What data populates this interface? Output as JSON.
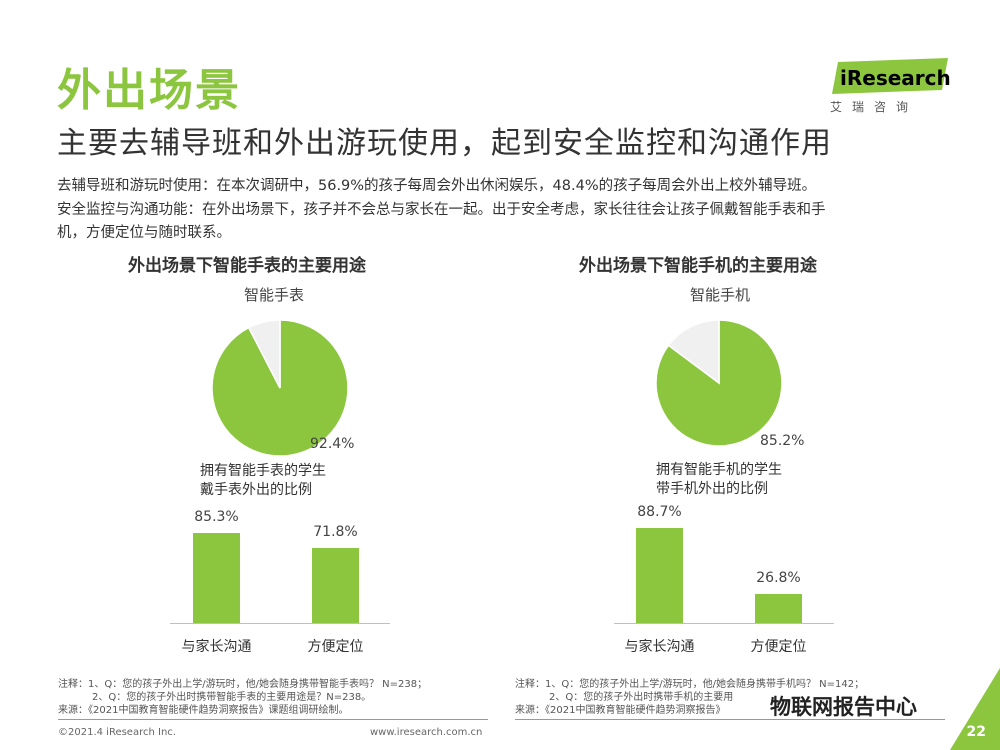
{
  "header": {
    "title": "外出场景",
    "subtitle": "主要去辅导班和外出游玩使用，起到安全监控和沟通作用",
    "logo_text": "iResearch",
    "logo_cn": "艾瑞咨询"
  },
  "description": {
    "line1": "去辅导班和游玩时使用：在本次调研中，56.9%的孩子每周会外出休闲娱乐，48.4%的孩子每周会外出上校外辅导班。",
    "line2": "安全监控与沟通功能：在外出场景下，孩子并不会总与家长在一起。出于安全考虑，家长往往会让孩子佩戴智能手表和手",
    "line3": "机，方便定位与随时联系。"
  },
  "chart_data": [
    {
      "type": "pie",
      "title": "外出场景下智能手表的主要用途",
      "subtitle": "智能手表",
      "values": [
        92.4,
        7.6
      ],
      "value_label": "92.4%",
      "caption_line1": "拥有智能手表的学生",
      "caption_line2": "戴手表外出的比例",
      "colors": [
        "#8cc63f",
        "#f0f0f0"
      ]
    },
    {
      "type": "bar",
      "categories": [
        "与家长沟通",
        "方便定位"
      ],
      "values": [
        85.3,
        71.8
      ],
      "value_labels": [
        "85.3%",
        "71.8%"
      ],
      "ylim": [
        0,
        100
      ],
      "color": "#8cc63f"
    },
    {
      "type": "pie",
      "title": "外出场景下智能手机的主要用途",
      "subtitle": "智能手机",
      "values": [
        85.2,
        14.8
      ],
      "value_label": "85.2%",
      "caption_line1": "拥有智能手机的学生",
      "caption_line2": "带手机外出的比例",
      "colors": [
        "#8cc63f",
        "#f0f0f0"
      ]
    },
    {
      "type": "bar",
      "categories": [
        "与家长沟通",
        "方便定位"
      ],
      "values": [
        88.7,
        26.8
      ],
      "value_labels": [
        "88.7%",
        "26.8%"
      ],
      "ylim": [
        0,
        100
      ],
      "color": "#8cc63f"
    }
  ],
  "notes_left": {
    "line1": "注释：1、Q：您的孩子外出上学/游玩时，他/她会随身携带智能手表吗？ N=238；",
    "line2": "2、Q：您的孩子外出时携带智能手表的主要用途是？N=238。",
    "line3": "来源：《2021中国教育智能硬件趋势洞察报告》课题组调研绘制。"
  },
  "notes_right": {
    "line1": "注释：1、Q：您的孩子外出上学/游玩时，他/她会随身携带手机吗？ N=142；",
    "line2": "2、Q：您的孩子外出时携带手机的主要用",
    "line3": "来源：《2021中国教育智能硬件趋势洞察报告》"
  },
  "footer": {
    "copyright": "©2021.4 iResearch Inc.",
    "website": "www.iresearch.com.cn",
    "watermark": "物联网报告中心",
    "page": "22"
  }
}
